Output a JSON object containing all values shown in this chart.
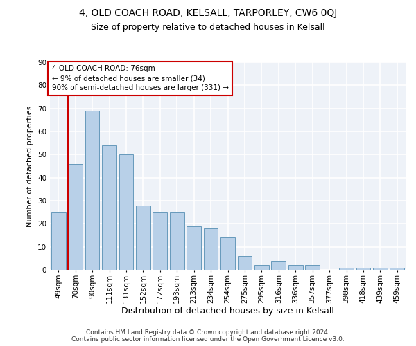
{
  "title1": "4, OLD COACH ROAD, KELSALL, TARPORLEY, CW6 0QJ",
  "title2": "Size of property relative to detached houses in Kelsall",
  "xlabel": "Distribution of detached houses by size in Kelsall",
  "ylabel": "Number of detached properties",
  "categories": [
    "49sqm",
    "70sqm",
    "90sqm",
    "111sqm",
    "131sqm",
    "152sqm",
    "172sqm",
    "193sqm",
    "213sqm",
    "234sqm",
    "254sqm",
    "275sqm",
    "295sqm",
    "316sqm",
    "336sqm",
    "357sqm",
    "377sqm",
    "398sqm",
    "418sqm",
    "439sqm",
    "459sqm"
  ],
  "values": [
    25,
    46,
    69,
    54,
    50,
    28,
    25,
    25,
    19,
    18,
    14,
    6,
    2,
    4,
    2,
    2,
    0,
    1,
    1,
    1,
    1
  ],
  "bar_color": "#b8d0e8",
  "bar_edge_color": "#6699bb",
  "annotation_title": "4 OLD COACH ROAD: 76sqm",
  "annotation_line1": "← 9% of detached houses are smaller (34)",
  "annotation_line2": "90% of semi-detached houses are larger (331) →",
  "annotation_box_color": "#ffffff",
  "annotation_box_edge": "#cc0000",
  "red_line_color": "#cc0000",
  "ylim": [
    0,
    90
  ],
  "yticks": [
    0,
    10,
    20,
    30,
    40,
    50,
    60,
    70,
    80,
    90
  ],
  "footer1": "Contains HM Land Registry data © Crown copyright and database right 2024.",
  "footer2": "Contains public sector information licensed under the Open Government Licence v3.0.",
  "bg_color": "#eef2f8",
  "grid_color": "#ffffff",
  "title1_fontsize": 10,
  "title2_fontsize": 9,
  "xlabel_fontsize": 9,
  "ylabel_fontsize": 8,
  "tick_fontsize": 7.5,
  "annotation_fontsize": 7.5,
  "footer_fontsize": 6.5
}
